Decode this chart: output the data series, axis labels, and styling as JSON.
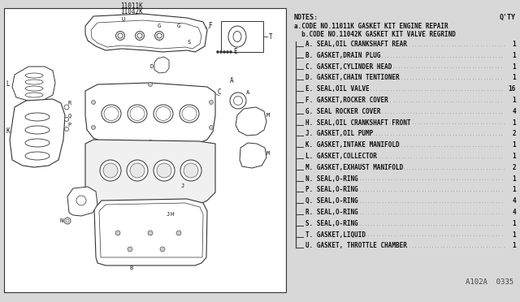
{
  "bg_color": "#d8d8d8",
  "box_bg": "#f5f5f5",
  "title_codes": [
    "11011K",
    "11042K"
  ],
  "notes_label": "NOTES:",
  "qty_label": "Q'TY",
  "code_a_line": "a.CODE NO.11011K GASKET KIT ENGINE REPAIR",
  "code_b_line": "  b.CODE NO.11042K GASKET KIT VALVE REGRIND",
  "part_number": "A102A  0335",
  "items": [
    {
      "letter": "A",
      "desc": "SEAL,OIL CRANKSHAFT REAR",
      "qty": "1"
    },
    {
      "letter": "B",
      "desc": "GASKET,DRAIN PLUG",
      "qty": "1"
    },
    {
      "letter": "C",
      "desc": "GASKET,CYLINDER HEAD",
      "qty": "1"
    },
    {
      "letter": "D",
      "desc": "GASKET,CHAIN TENTIONER",
      "qty": "1"
    },
    {
      "letter": "E",
      "desc": "SEAL,OIL VALVE",
      "qty": "16"
    },
    {
      "letter": "F",
      "desc": "GASKET,ROCKER COVER",
      "qty": "1"
    },
    {
      "letter": "G",
      "desc": "SEAL ROCKER COVER",
      "qty": "4"
    },
    {
      "letter": "H",
      "desc": "SEAL,OIL CRANKSHAFT FRONT",
      "qty": "1"
    },
    {
      "letter": "J",
      "desc": "GASKET,OIL PUMP",
      "qty": "2"
    },
    {
      "letter": "K",
      "desc": "GASKET,INTAKE MANIFOLD",
      "qty": "1"
    },
    {
      "letter": "L",
      "desc": "GASKET,COLLECTOR",
      "qty": "1"
    },
    {
      "letter": "M",
      "desc": "GASKET,EXHAUST MANIFOLD",
      "qty": "2"
    },
    {
      "letter": "N",
      "desc": "SEAL,O-RING",
      "qty": "1"
    },
    {
      "letter": "P",
      "desc": "SEAL,O-RING",
      "qty": "1"
    },
    {
      "letter": "Q",
      "desc": "SEAL,O-RING",
      "qty": "4"
    },
    {
      "letter": "R",
      "desc": "SEAL,O-RING",
      "qty": "4"
    },
    {
      "letter": "S",
      "desc": "SEAL,O-RING",
      "qty": "1"
    },
    {
      "letter": "T",
      "desc": "GASKET,LIQUID",
      "qty": "1"
    },
    {
      "letter": "U",
      "desc": "GASKET, THROTTLE CHAMBER",
      "qty": "1"
    }
  ],
  "line_color": "#333333",
  "text_color": "#111111"
}
